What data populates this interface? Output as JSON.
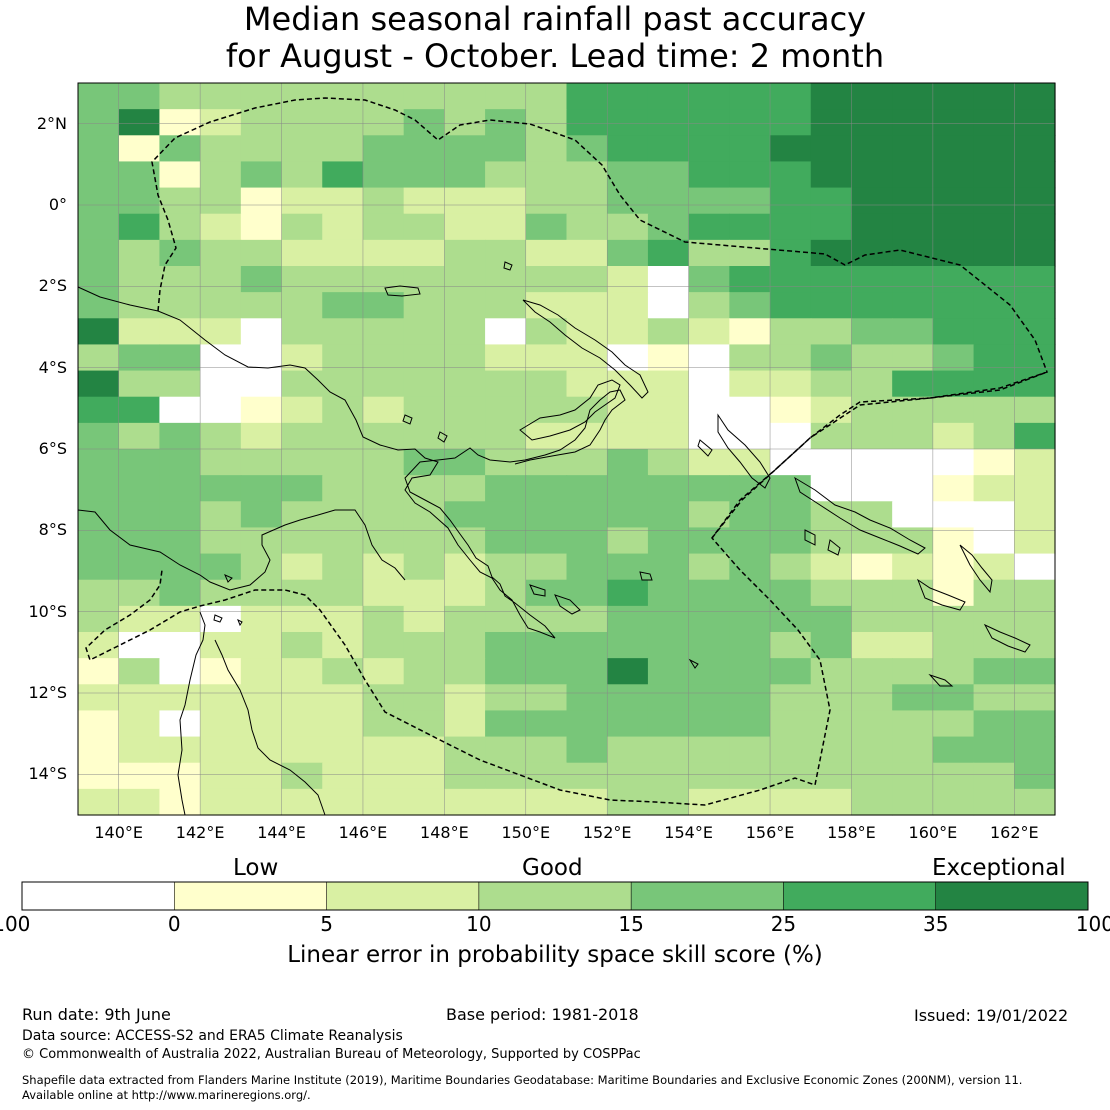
{
  "title": {
    "line1": "Median seasonal rainfall past accuracy",
    "line2": "for August - October. Lead time: 2 month"
  },
  "map": {
    "lon_range": [
      139,
      163
    ],
    "lat_range": [
      -15,
      3
    ],
    "lat_ticks": [
      {
        "value": 2,
        "label": "2°N"
      },
      {
        "value": 0,
        "label": "0°"
      },
      {
        "value": -2,
        "label": "2°S"
      },
      {
        "value": -4,
        "label": "4°S"
      },
      {
        "value": -6,
        "label": "6°S"
      },
      {
        "value": -8,
        "label": "8°S"
      },
      {
        "value": -10,
        "label": "10°S"
      },
      {
        "value": -12,
        "label": "12°S"
      },
      {
        "value": -14,
        "label": "14°S"
      }
    ],
    "lon_ticks": [
      {
        "value": 140,
        "label": "140°E"
      },
      {
        "value": 142,
        "label": "142°E"
      },
      {
        "value": 144,
        "label": "144°E"
      },
      {
        "value": 146,
        "label": "146°E"
      },
      {
        "value": 148,
        "label": "148°E"
      },
      {
        "value": 150,
        "label": "150°E"
      },
      {
        "value": 152,
        "label": "152°E"
      },
      {
        "value": 154,
        "label": "154°E"
      },
      {
        "value": 156,
        "label": "156°E"
      },
      {
        "value": 158,
        "label": "158°E"
      },
      {
        "value": 160,
        "label": "160°E"
      },
      {
        "value": 162,
        "label": "162°E"
      }
    ],
    "grid_lines": true,
    "coastline_color": "#000000",
    "eez_boundary_style": "dashed",
    "skill_grid": [
      "BB3333333333555555666666",
      "BA1233334343555555666666",
      "B1B333344443455556666666",
      "BB1343544433344555666666",
      "BB3312232223344445566666",
      "B5321323322433455556666666",
      "B343322223322453356666666",
      "B33343333333320455555555",
      "B33333443332220345555555",
      "A2220333330322321334455555",
      "3BB002333322201033433455",
      "A3300333333322202233555555",
      "5500123233333220012333335",
      "4343233333322220003332355",
      "4443333344333432200000123",
      "B4444433334444444400012233",
      "4443B333344444434433000202",
      "44433333334443444433310220",
      "4444323232334443432121202",
      "3343333222344544443331332",
      "322022232333344444433333",
      "2002232333444444434223333",
      "1301223233444644443333444",
      "2222222332334444433344333",
      "1202222332444444433333443",
      "1222222223334333333334444",
      "1112232223333333333333344",
      "2212222222222332222333333"
    ]
  },
  "legend": {
    "categories": [
      {
        "label": "Low"
      },
      {
        "label": "Good"
      },
      {
        "label": "Exceptional"
      }
    ],
    "bins": [
      {
        "from": -100,
        "to": 0,
        "color": "#ffffff"
      },
      {
        "from": 0,
        "to": 5,
        "color": "#ffffcc"
      },
      {
        "from": 5,
        "to": 10,
        "color": "#d9f0a3"
      },
      {
        "from": 10,
        "to": 15,
        "color": "#addd8e"
      },
      {
        "from": 15,
        "to": 25,
        "color": "#78c679"
      },
      {
        "from": 25,
        "to": 35,
        "color": "#41ab5d"
      },
      {
        "from": 35,
        "to": 100,
        "color": "#238443"
      }
    ],
    "tick_labels": [
      "-100",
      "0",
      "5",
      "10",
      "15",
      "25",
      "35",
      "100"
    ],
    "title": "Linear error in probability space skill score (%)"
  },
  "footer": {
    "run_date": "Run date: 9th June",
    "base_period": "Base period: 1981-2018",
    "issued": "Issued: 19/01/2022",
    "data_source": "Data source: ACCESS-S2 and ERA5 Climate Reanalysis",
    "copyright": "© Commonwealth of Australia 2022, Australian Bureau of Meteorology, Supported by COSPPac",
    "shapefile_line1": "Shapefile data extracted from Flanders Marine Institute (2019), Maritime Boundaries Geodatabase: Maritime Boundaries and Exclusive Economic Zones (200NM), version 11.",
    "shapefile_line2": "Available online at http://www.marineregions.org/."
  }
}
